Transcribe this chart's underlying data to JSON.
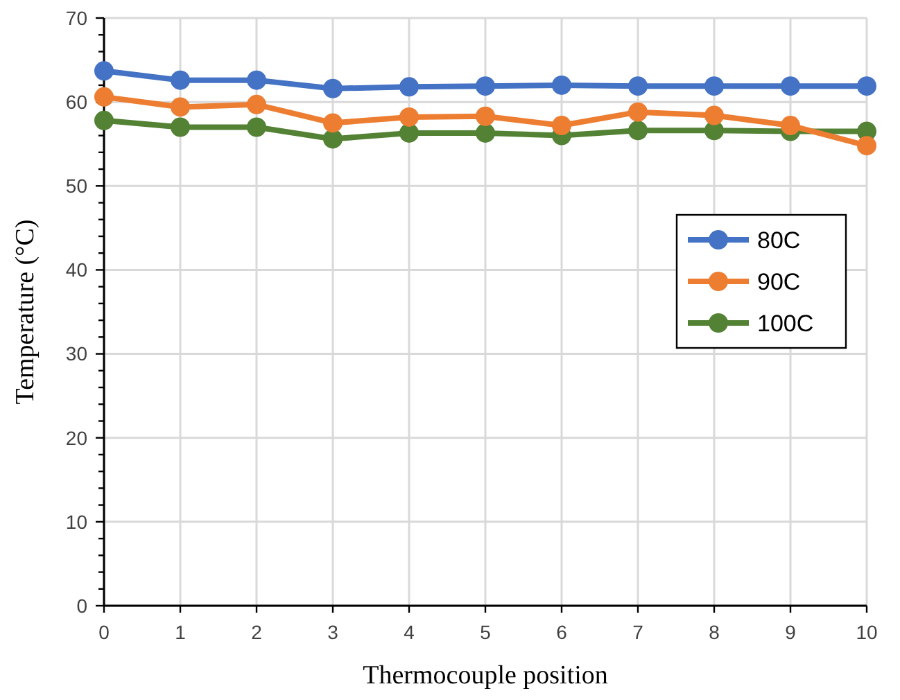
{
  "chart_data": {
    "type": "line",
    "xlabel": "Thermocouple position",
    "ylabel": "Temperature (°C)",
    "x": [
      0,
      1,
      2,
      3,
      4,
      5,
      6,
      7,
      8,
      9,
      10
    ],
    "xlim": [
      0,
      10
    ],
    "xticks": [
      0,
      1,
      2,
      3,
      4,
      5,
      6,
      7,
      8,
      9,
      10
    ],
    "ylim": [
      0,
      70
    ],
    "yticks": [
      0,
      {
        "value": 2,
        "label": null
      },
      {
        "value": 4,
        "label": null
      },
      {
        "value": 6,
        "label": null
      },
      {
        "value": 8,
        "label": null
      },
      10,
      {
        "value": 12,
        "label": null
      },
      {
        "value": 14,
        "label": null
      },
      {
        "value": 16,
        "label": null
      },
      {
        "value": 18,
        "label": null
      },
      20,
      {
        "value": 22,
        "label": null
      },
      {
        "value": 24,
        "label": null
      },
      {
        "value": 26,
        "label": null
      },
      {
        "value": 28,
        "label": null
      },
      30,
      {
        "value": 32,
        "label": null
      },
      {
        "value": 34,
        "label": null
      },
      {
        "value": 36,
        "label": null
      },
      {
        "value": 38,
        "label": null
      },
      40,
      {
        "value": 42,
        "label": null
      },
      {
        "value": 44,
        "label": null
      },
      {
        "value": 46,
        "label": null
      },
      {
        "value": 48,
        "label": null
      },
      50,
      {
        "value": 52,
        "label": null
      },
      {
        "value": 54,
        "label": null
      },
      {
        "value": 56,
        "label": null
      },
      {
        "value": 58,
        "label": null
      },
      60,
      {
        "value": 62,
        "label": null
      },
      {
        "value": 64,
        "label": null
      },
      {
        "value": 66,
        "label": null
      },
      {
        "value": 68,
        "label": null
      },
      70
    ],
    "grid": true,
    "legend": "right",
    "marker": "circle",
    "line_style": "solid",
    "series": [
      {
        "name": "80C",
        "color": "#4472c4",
        "values": [
          63.7,
          62.6,
          62.6,
          61.6,
          61.8,
          61.9,
          62.0,
          61.9,
          61.9,
          61.9,
          61.9
        ]
      },
      {
        "name": "90C",
        "color": "#ed7d31",
        "values": [
          60.6,
          59.4,
          59.7,
          57.5,
          58.2,
          58.3,
          57.2,
          58.8,
          58.4,
          57.2,
          54.8
        ]
      },
      {
        "name": "100C",
        "color": "#548235",
        "values": [
          57.8,
          57.0,
          57.0,
          55.6,
          56.3,
          56.3,
          56.0,
          56.6,
          56.6,
          56.5,
          56.5
        ]
      }
    ]
  }
}
